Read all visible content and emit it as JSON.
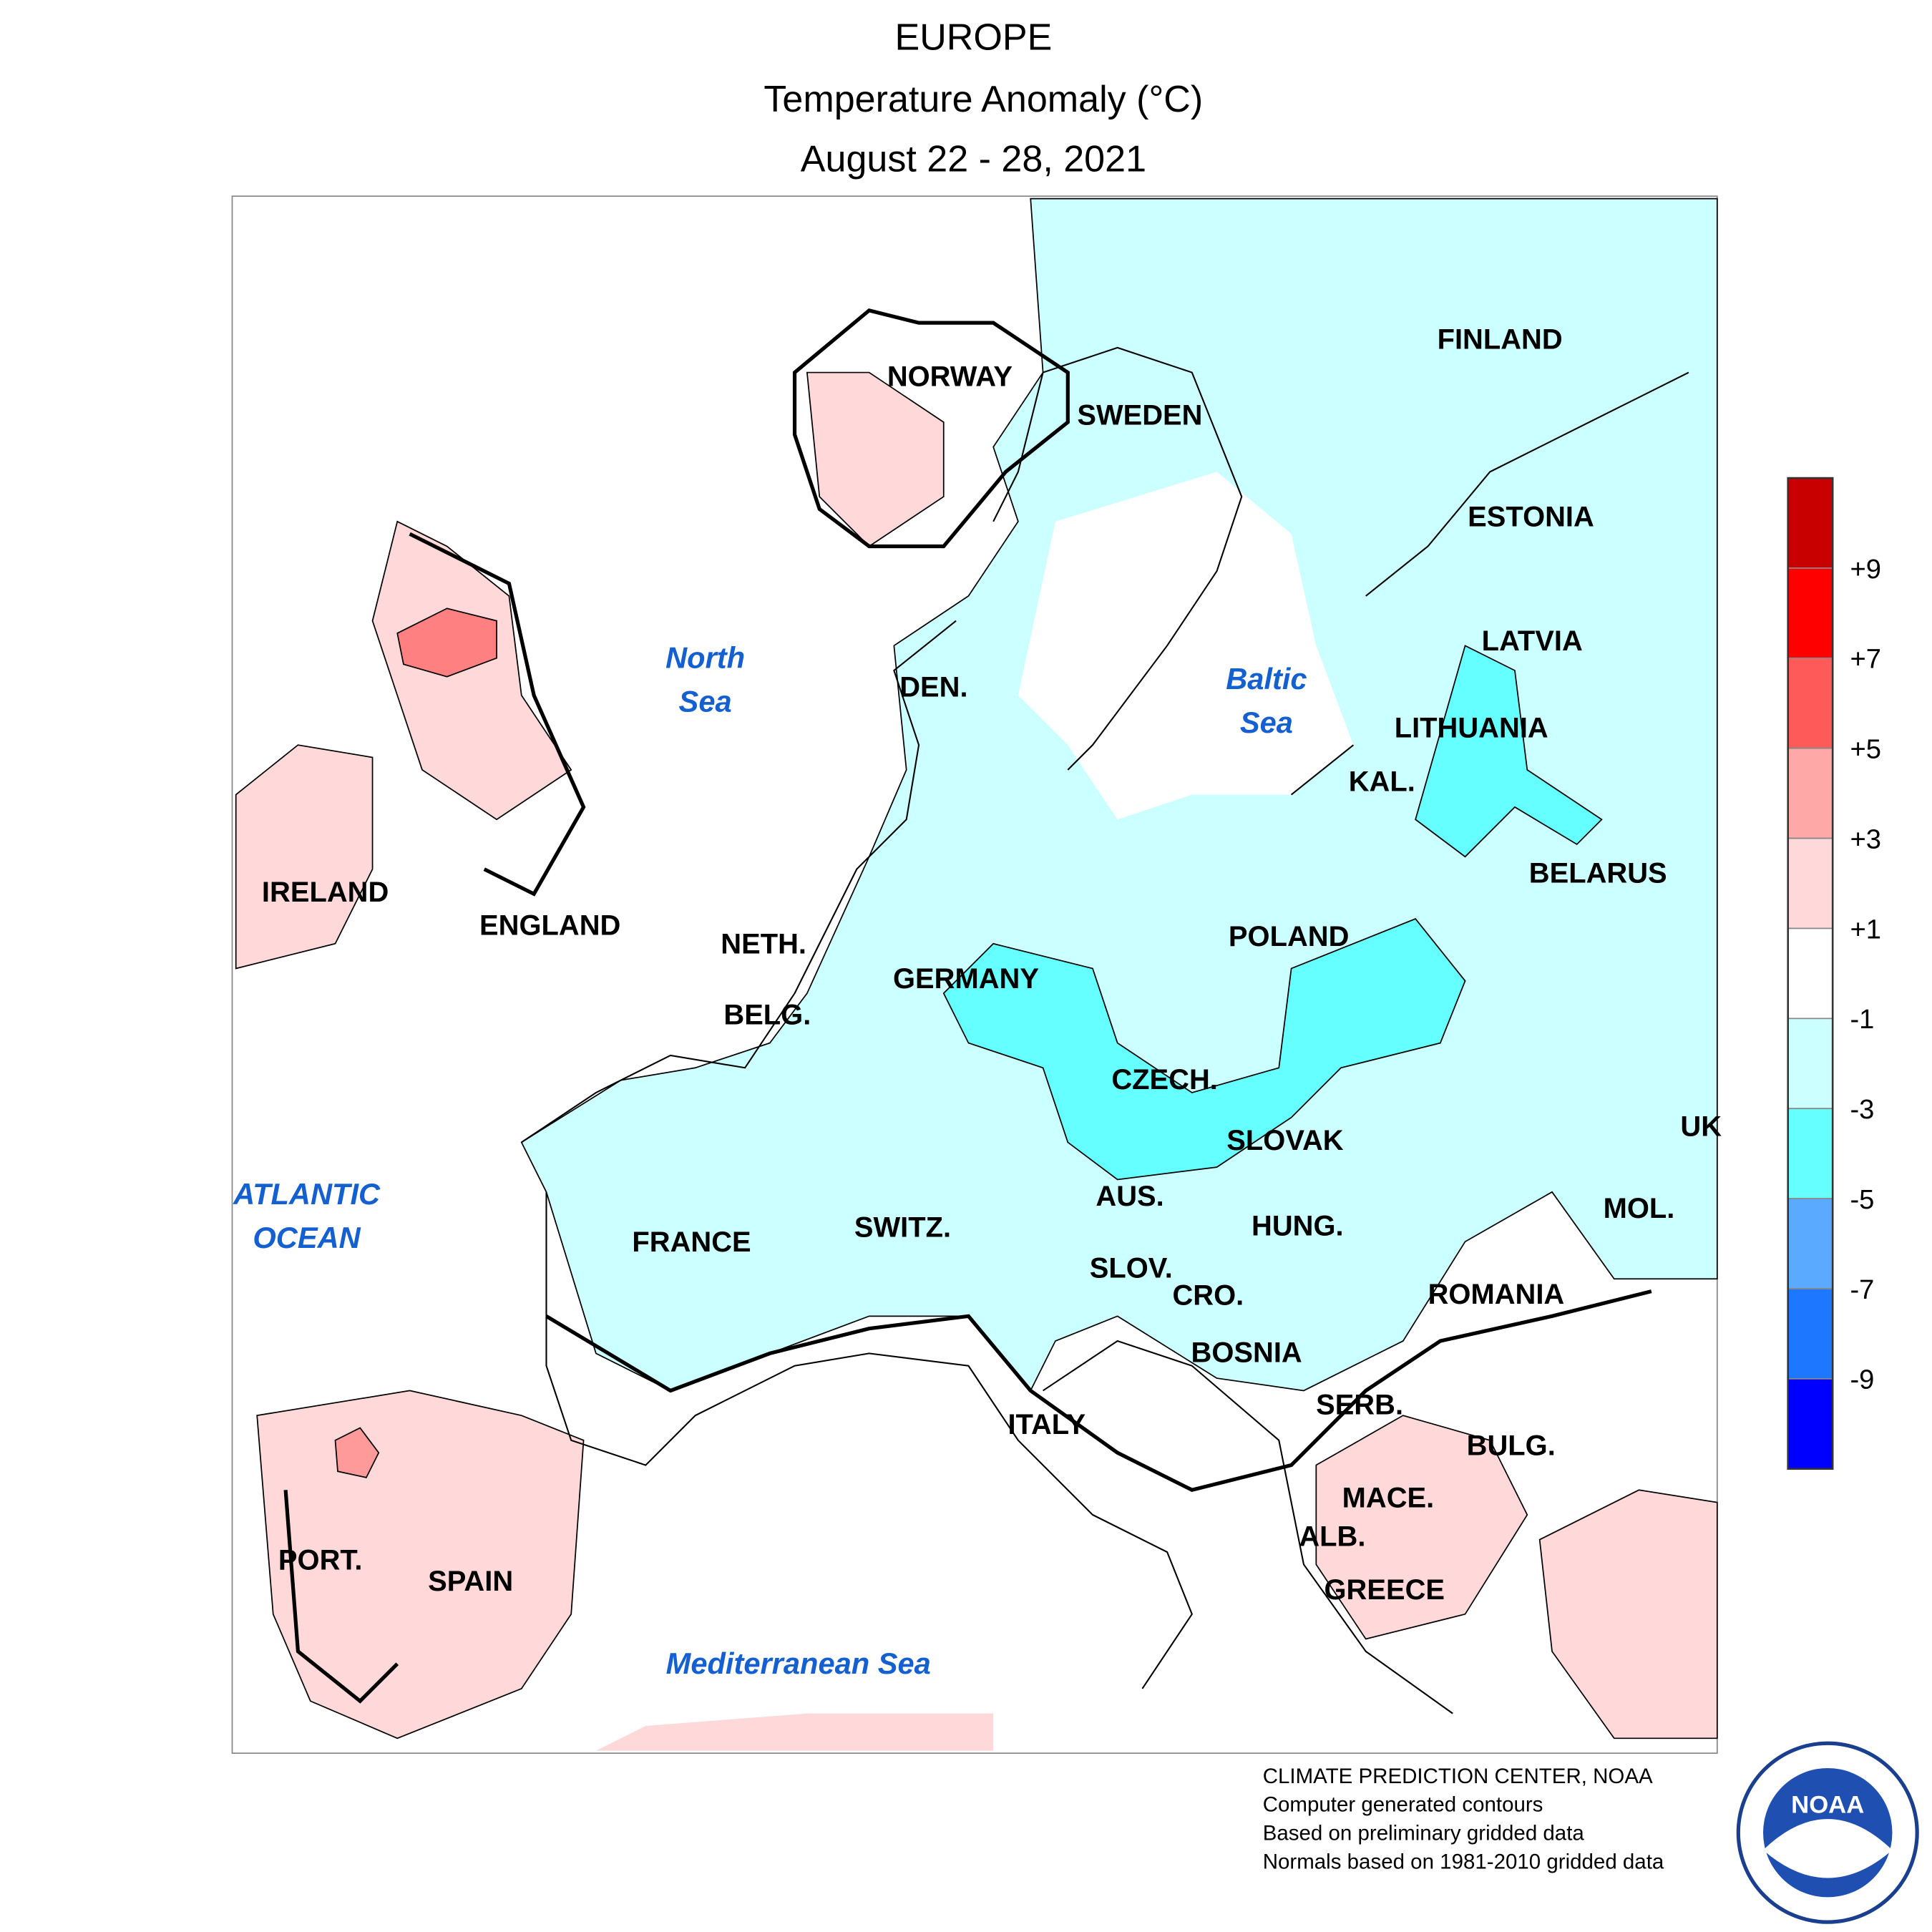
{
  "header": {
    "lines": [
      "EUROPE",
      "Temperature Anomaly (°C)",
      "August 22 - 28, 2021"
    ]
  },
  "countries": [
    "NORWAY",
    "SWEDEN",
    "FINLAND",
    "ESTONIA",
    "LATVIA",
    "LITHUANIA",
    "KAL.",
    "BELARUS",
    "DEN.",
    "POLAND",
    "GERMANY",
    "NETH.",
    "BELG.",
    "IRELAND",
    "ENGLAND",
    "CZECH.",
    "SLOVAK",
    "UK",
    "AUS.",
    "MOL.",
    "HUNG.",
    "FRANCE",
    "SWITZ.",
    "SLOV.",
    "CRO.",
    "ROMANIA",
    "BOSNIA",
    "SERB.",
    "ITALY",
    "BULG.",
    "MACE.",
    "ALB.",
    "GREECE",
    "PORT.",
    "SPAIN"
  ],
  "seas": [
    "North",
    "Sea",
    "Baltic",
    "Sea",
    "ATLANTIC",
    "OCEAN",
    "Mediterranean Sea"
  ],
  "legend": {
    "ticks": [
      "+9",
      "+7",
      "+5",
      "+3",
      "+1",
      "-1",
      "-3",
      "-5",
      "-7",
      "-9"
    ],
    "colors": [
      "#c80000",
      "#ff0000",
      "#ff5a5a",
      "#ffa8a8",
      "#ffd9d9",
      "#ffffff",
      "#ccffff",
      "#66ffff",
      "#5aaaff",
      "#1e78ff",
      "#0000ff"
    ]
  },
  "footer": [
    "CLIMATE PREDICTION CENTER, NOAA",
    "Computer generated contours",
    "Based on preliminary gridded data",
    "Normals based on 1981-2010 gridded data"
  ],
  "logo": {
    "text": "NOAA"
  }
}
